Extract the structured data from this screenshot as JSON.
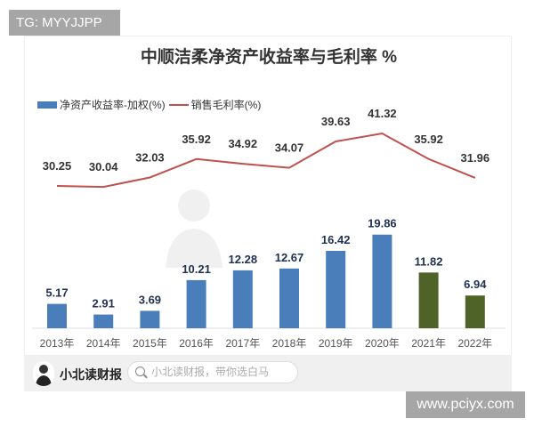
{
  "tg_label": "TG: MYYJJPP",
  "site_label": "www.pciyx.com",
  "watermark": {
    "line1": "小北读财报",
    "line2": "带你选白马"
  },
  "footer": {
    "brand": "小北读财报",
    "search_placeholder": "小北读财报，带你选白马"
  },
  "chart_data": {
    "type": "bar+line",
    "title": "中顺洁柔净资产收益率与毛利率 %",
    "categories": [
      "2013年",
      "2014年",
      "2015年",
      "2016年",
      "2017年",
      "2018年",
      "2019年",
      "2020年",
      "2021年",
      "2022年"
    ],
    "series": [
      {
        "name": "净资产收益率-加权(%)",
        "type": "bar",
        "values": [
          5.17,
          2.91,
          3.69,
          10.21,
          12.28,
          12.67,
          16.42,
          19.86,
          11.82,
          6.94
        ],
        "color": "#4a7ebb",
        "highlight_color": "#4f6228"
      },
      {
        "name": "销售毛利率(%)",
        "type": "line",
        "values": [
          30.25,
          30.04,
          32.03,
          35.92,
          34.92,
          34.07,
          39.63,
          41.32,
          35.92,
          31.96
        ],
        "color": "#c0504d"
      }
    ],
    "legend": "top-left",
    "grid": false
  }
}
